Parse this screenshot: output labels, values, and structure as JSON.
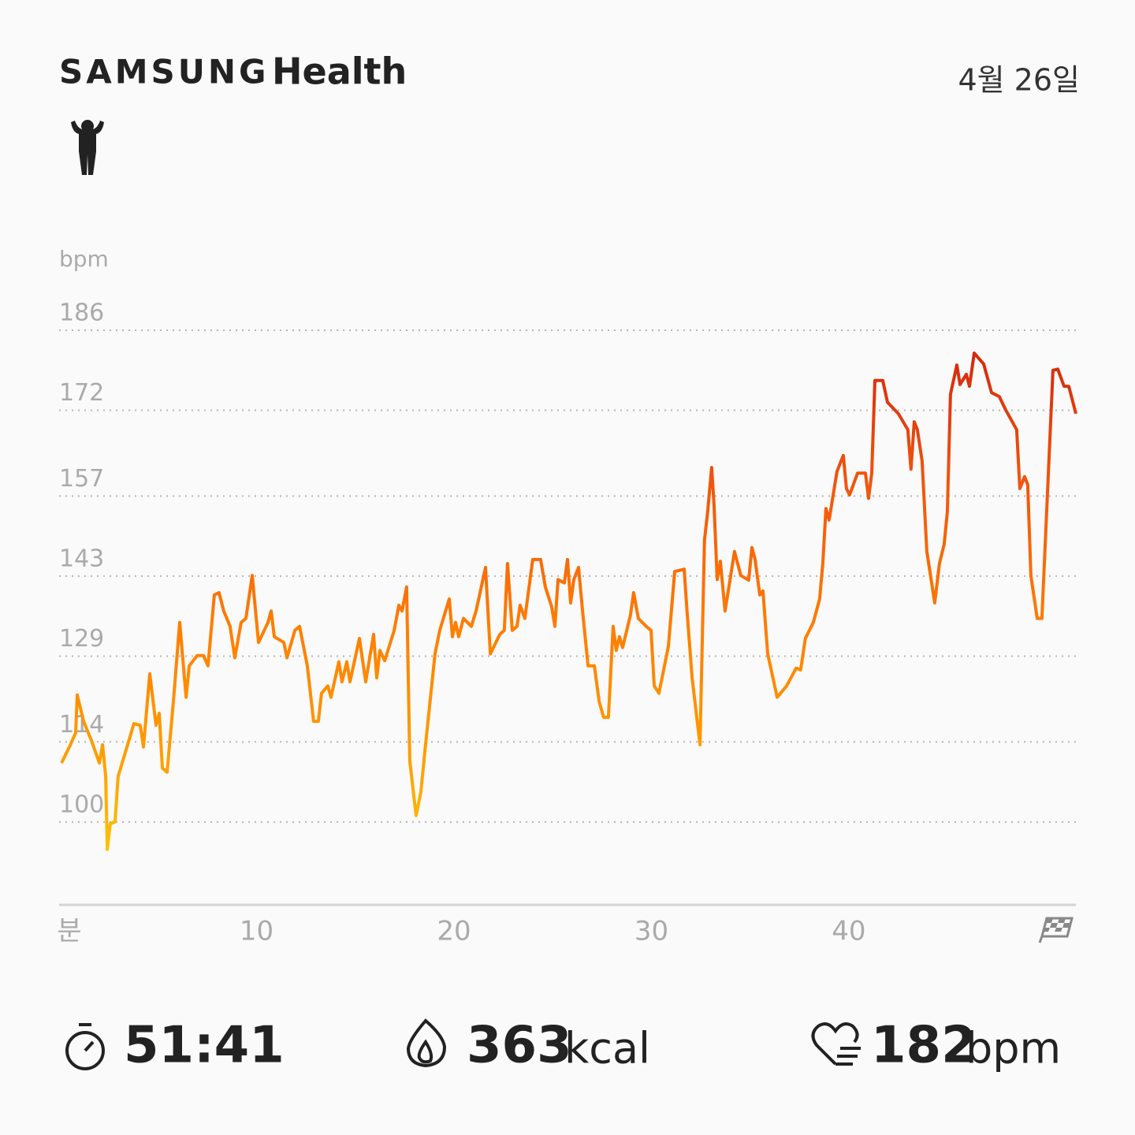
{
  "header": {
    "brand": "SAMSUNG",
    "app": "Health",
    "date": "4월 26일"
  },
  "chart_data": {
    "type": "line",
    "y_label": "bpm",
    "x_label": "분",
    "xlim": [
      0,
      51.5
    ],
    "xticks": [
      10,
      20,
      30,
      40
    ],
    "ylim": [
      85.5,
      186
    ],
    "yticks": [
      186,
      172,
      157,
      143,
      129,
      114,
      100
    ],
    "grid": true,
    "x": [
      0.12,
      0.52,
      0.84,
      0.92,
      1.24,
      1.64,
      2.04,
      2.2,
      2.36,
      2.44,
      2.59,
      2.83,
      2.99,
      3.47,
      3.79,
      4.11,
      4.27,
      4.59,
      4.91,
      5.07,
      5.23,
      5.47,
      5.79,
      6.11,
      6.43,
      6.59,
      6.99,
      7.31,
      7.54,
      7.86,
      8.1,
      8.34,
      8.66,
      8.9,
      9.22,
      9.46,
      9.78,
      10.1,
      10.58,
      10.74,
      10.9,
      11.38,
      11.54,
      11.94,
      12.18,
      12.57,
      12.89,
      13.13,
      13.29,
      13.61,
      13.77,
      14.17,
      14.33,
      14.57,
      14.73,
      15.21,
      15.53,
      15.93,
      16.09,
      16.25,
      16.49,
      16.97,
      17.21,
      17.37,
      17.6,
      17.76,
      18.08,
      18.32,
      18.56,
      19.04,
      19.28,
      19.76,
      19.92,
      20.08,
      20.24,
      20.48,
      20.88,
      21.12,
      21.6,
      21.84,
      22.32,
      22.55,
      22.71,
      22.95,
      23.19,
      23.35,
      23.59,
      23.99,
      24.39,
      24.63,
      24.95,
      25.11,
      25.27,
      25.59,
      25.75,
      25.91,
      26.07,
      26.31,
      26.55,
      26.79,
      27.11,
      27.35,
      27.58,
      27.82,
      28.06,
      28.22,
      28.38,
      28.54,
      28.94,
      29.1,
      29.34,
      29.74,
      29.98,
      30.14,
      30.38,
      30.86,
      31.18,
      31.66,
      31.82,
      32.06,
      32.46,
      32.69,
      32.85,
      33.05,
      33.17,
      33.33,
      33.49,
      33.73,
      34.21,
      34.53,
      34.93,
      35.09,
      35.25,
      35.49,
      35.65,
      35.89,
      36.37,
      36.85,
      37.33,
      37.56,
      37.8,
      38.2,
      38.52,
      38.68,
      38.84,
      39.0,
      39.4,
      39.72,
      39.88,
      40.04,
      40.44,
      40.84,
      41.0,
      41.16,
      41.32,
      41.72,
      41.96,
      42.51,
      42.99,
      43.15,
      43.31,
      43.47,
      43.71,
      43.95,
      44.35,
      44.59,
      44.83,
      44.99,
      45.15,
      45.47,
      45.63,
      45.95,
      46.11,
      46.35,
      46.83,
      47.23,
      47.62,
      47.94,
      48.5,
      48.66,
      48.9,
      49.06,
      49.22,
      49.54,
      49.78,
      50.02,
      50.34,
      50.58,
      50.9,
      51.14,
      51.5
    ],
    "series": [
      {
        "colors": [
          "#d0200c",
          "#f0520e",
          "#ff7a00",
          "#ff9f00",
          "#ffd500"
        ],
        "values": [
          110.3,
          113.1,
          115.6,
          122.2,
          117.6,
          114.2,
          110.3,
          113.5,
          108.0,
          95.2,
          99.7,
          100.0,
          108.0,
          113.5,
          117.2,
          116.9,
          113.1,
          125.9,
          116.9,
          119.0,
          109.4,
          108.7,
          121.1,
          134.9,
          121.8,
          127.3,
          129.1,
          129.1,
          127.3,
          139.7,
          140.1,
          136.9,
          134.2,
          128.7,
          134.9,
          135.6,
          143.1,
          131.4,
          134.9,
          136.9,
          132.4,
          131.4,
          128.7,
          133.5,
          134.2,
          127.3,
          117.6,
          117.6,
          122.5,
          123.8,
          121.8,
          128.0,
          124.5,
          128.0,
          124.5,
          132.1,
          124.5,
          132.8,
          125.2,
          130.0,
          128.2,
          133.5,
          137.9,
          136.9,
          141.1,
          110.7,
          101.1,
          105.2,
          113.5,
          129.4,
          133.5,
          139.0,
          132.4,
          134.9,
          132.4,
          135.6,
          134.2,
          136.9,
          144.5,
          129.4,
          132.8,
          133.5,
          145.2,
          133.5,
          134.2,
          137.9,
          135.6,
          145.9,
          145.9,
          141.1,
          137.6,
          134.2,
          142.4,
          141.8,
          145.9,
          138.3,
          142.4,
          144.5,
          135.6,
          127.3,
          127.3,
          121.1,
          118.3,
          118.3,
          134.2,
          130.0,
          132.4,
          130.5,
          136.2,
          140.1,
          135.6,
          134.2,
          133.5,
          123.8,
          122.5,
          130.7,
          143.8,
          144.2,
          136.2,
          125.2,
          113.5,
          149.3,
          154.2,
          162.0,
          155.5,
          142.4,
          145.6,
          136.9,
          147.3,
          143.1,
          142.3,
          148.0,
          145.9,
          139.7,
          140.4,
          129.4,
          121.8,
          123.8,
          126.9,
          126.6,
          132.1,
          134.9,
          139.0,
          145.2,
          154.8,
          152.8,
          161.3,
          164.1,
          158.3,
          157.2,
          161.0,
          161.0,
          156.6,
          161.0,
          177.2,
          177.2,
          173.4,
          171.4,
          168.6,
          161.7,
          170.0,
          168.6,
          163.1,
          147.3,
          138.3,
          145.2,
          148.6,
          154.2,
          174.8,
          179.9,
          176.5,
          178.3,
          176.2,
          182.0,
          180.1,
          175.1,
          174.4,
          172.1,
          168.6,
          158.3,
          160.4,
          159.0,
          143.1,
          135.6,
          135.6,
          154.2,
          179.0,
          179.2,
          176.2,
          176.2,
          171.4
        ]
      }
    ]
  },
  "stats": {
    "duration": "51:41",
    "calories": 363,
    "calories_unit": "kcal",
    "max_heart_rate": 182,
    "heart_rate_unit": "bpm"
  }
}
